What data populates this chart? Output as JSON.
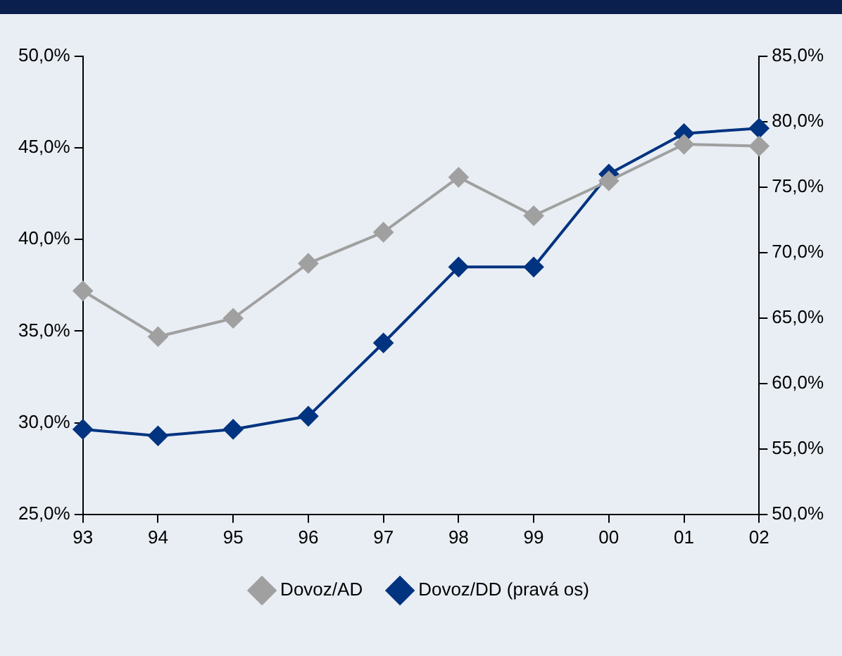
{
  "chart_data": {
    "type": "line",
    "categories": [
      "93",
      "94",
      "95",
      "96",
      "97",
      "98",
      "99",
      "00",
      "01",
      "02"
    ],
    "series": [
      {
        "name": "Dovoz/AD",
        "color": "#a0a0a0",
        "values": [
          37.2,
          34.7,
          35.7,
          38.7,
          40.4,
          43.4,
          41.3,
          43.2,
          45.2,
          45.1
        ]
      },
      {
        "name": "Dovoz/DD (pravá os)",
        "color": "#003380",
        "axis": "y2",
        "values": [
          56.5,
          56.0,
          56.5,
          57.5,
          63.1,
          68.9,
          68.9,
          76.0,
          79.1,
          79.5
        ]
      }
    ],
    "ylim": [
      25,
      50
    ],
    "yticks": [
      {
        "value": 25,
        "label": "25,0%"
      },
      {
        "value": 30,
        "label": "30,0%"
      },
      {
        "value": 35,
        "label": "35,0%"
      },
      {
        "value": 40,
        "label": "40,0%"
      },
      {
        "value": 45,
        "label": "45,0%"
      },
      {
        "value": 50,
        "label": "50,0%"
      }
    ],
    "y2lim": [
      50,
      85
    ],
    "y2ticks": [
      {
        "value": 50,
        "label": "50,0%"
      },
      {
        "value": 55,
        "label": "55,0%"
      },
      {
        "value": 60,
        "label": "60,0%"
      },
      {
        "value": 65,
        "label": "65,0%"
      },
      {
        "value": 70,
        "label": "70,0%"
      },
      {
        "value": 75,
        "label": "75,0%"
      },
      {
        "value": 80,
        "label": "80,0%"
      },
      {
        "value": 85,
        "label": "85,0%"
      }
    ],
    "grid": false,
    "legend": "bottom",
    "marker": "diamond",
    "line_style": "solid"
  }
}
